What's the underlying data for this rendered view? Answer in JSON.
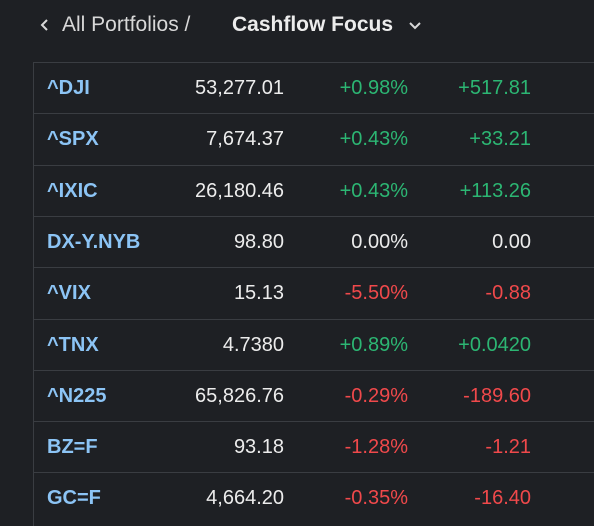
{
  "header": {
    "breadcrumb": "All Portfolios /",
    "title": "Cashflow Focus"
  },
  "table": {
    "rows": [
      [
        "^DJI",
        "53,277.01",
        "+0.98%",
        "+517.81"
      ],
      [
        "^SPX",
        "7,674.37",
        "+0.43%",
        "+33.21"
      ],
      [
        "^IXIC",
        "26,180.46",
        "+0.43%",
        "+113.26"
      ],
      [
        "DX-Y.NYB",
        "98.80",
        "0.00%",
        "0.00"
      ],
      [
        "^VIX",
        "15.13",
        "-5.50%",
        "-0.88"
      ],
      [
        "^TNX",
        "4.7380",
        "+0.89%",
        "+0.0420"
      ],
      [
        "^N225",
        "65,826.76",
        "-0.29%",
        "-189.60"
      ],
      [
        "BZ=F",
        "93.18",
        "-1.28%",
        "-1.21"
      ],
      [
        "GC=F",
        "4,664.20",
        "-0.35%",
        "-16.40"
      ]
    ]
  }
}
